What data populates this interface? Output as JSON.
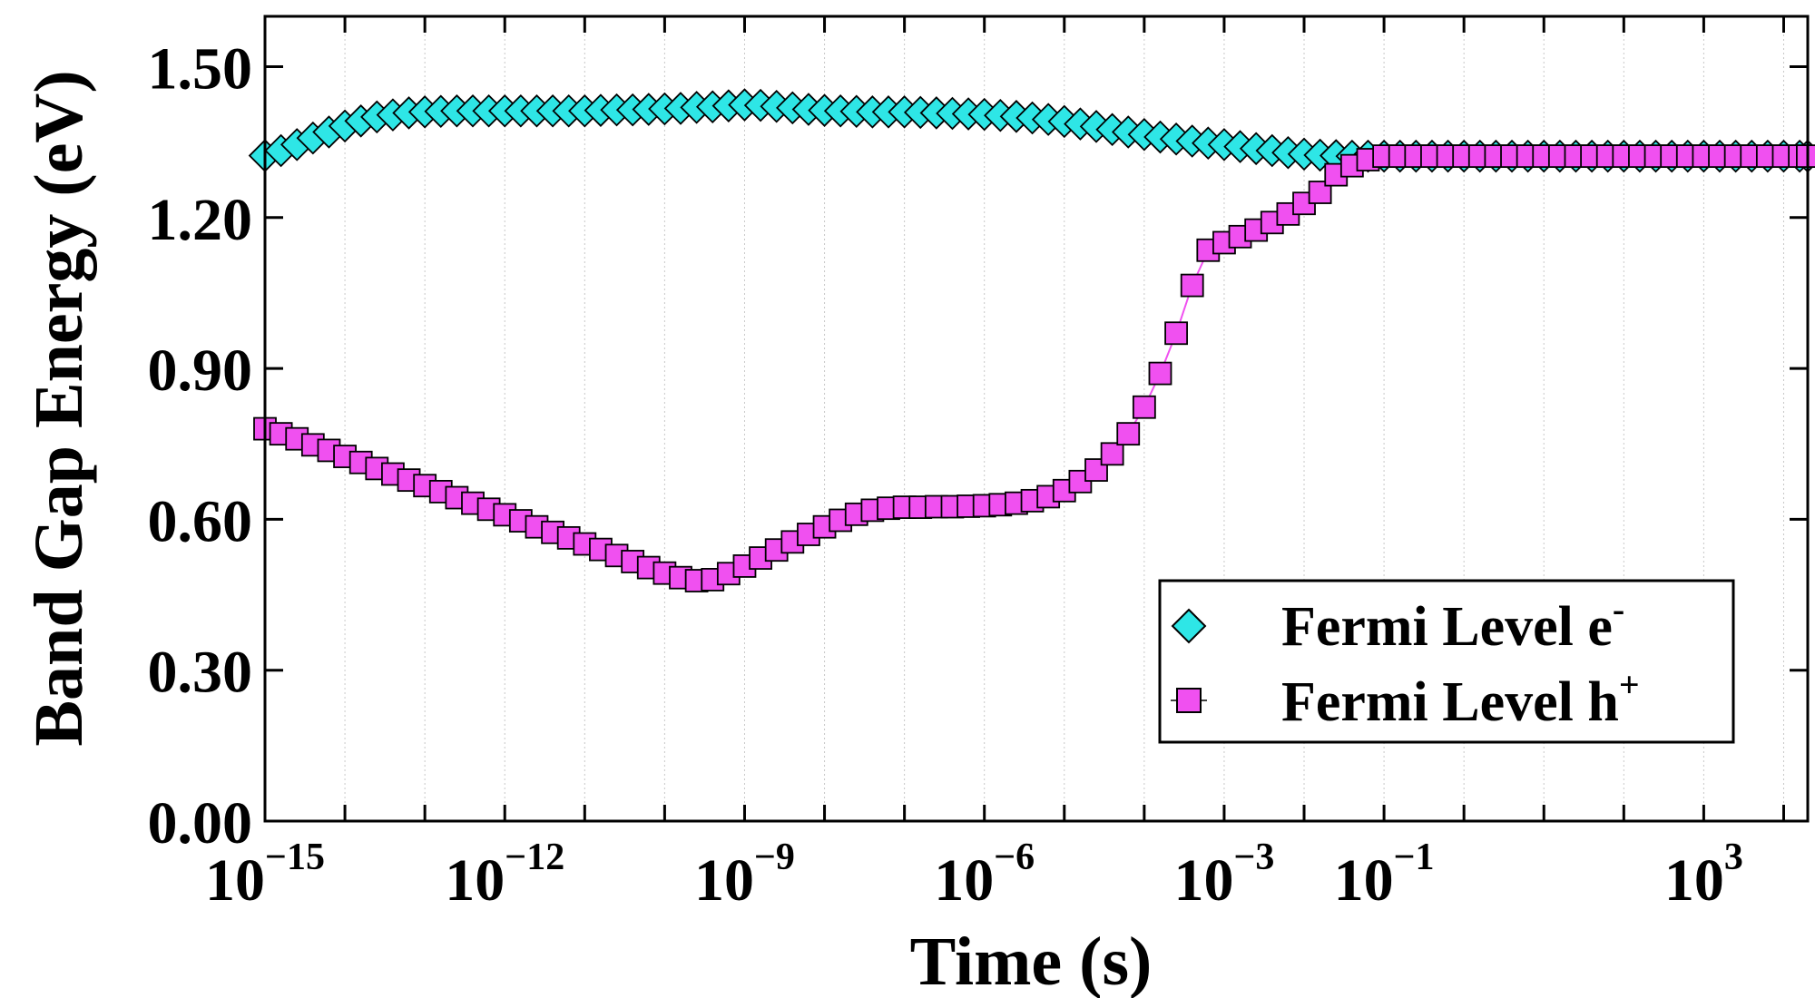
{
  "chart_data": {
    "type": "scatter",
    "xlabel": "Time (s)",
    "ylabel": "Band Gap Energy (eV)",
    "xscale": "log",
    "xlim": [
      1e-15,
      20000
    ],
    "ylim": [
      0.0,
      1.6
    ],
    "grid": {
      "x": true,
      "y": false
    },
    "x_tick_labels": [
      {
        "value": 1e-15,
        "base": "10",
        "exp": "−15"
      },
      {
        "value": 1e-12,
        "base": "10",
        "exp": "−12"
      },
      {
        "value": 1e-09,
        "base": "10",
        "exp": "−9"
      },
      {
        "value": 1e-06,
        "base": "10",
        "exp": "−6"
      },
      {
        "value": 0.001,
        "base": "10",
        "exp": "−3"
      },
      {
        "value": 0.1,
        "base": "10",
        "exp": "−1"
      },
      {
        "value": 1000.0,
        "base": "10",
        "exp": "3"
      }
    ],
    "y_ticks": [
      0.0,
      0.3,
      0.6,
      0.9,
      1.2,
      1.5
    ],
    "y_tick_labels": [
      "0.00",
      "0.30",
      "0.60",
      "0.90",
      "1.20",
      "1.50"
    ],
    "legend_position": "bottom-right",
    "series": [
      {
        "name": "Fermi Level e",
        "superscript": "-",
        "marker": "diamond",
        "color": "#2ee6e6",
        "edge_color": "#000000",
        "line": false,
        "points": [
          [
            -15.0,
            1.323
          ],
          [
            -14.8,
            1.333
          ],
          [
            -14.6,
            1.345
          ],
          [
            -14.4,
            1.358
          ],
          [
            -14.2,
            1.37
          ],
          [
            -14.0,
            1.382
          ],
          [
            -13.8,
            1.392
          ],
          [
            -13.6,
            1.4
          ],
          [
            -13.4,
            1.404
          ],
          [
            -13.2,
            1.408
          ],
          [
            -13.0,
            1.41
          ],
          [
            -12.8,
            1.411
          ],
          [
            -12.6,
            1.412
          ],
          [
            -12.4,
            1.412
          ],
          [
            -12.2,
            1.412
          ],
          [
            -12.0,
            1.412
          ],
          [
            -11.8,
            1.412
          ],
          [
            -11.6,
            1.412
          ],
          [
            -11.4,
            1.412
          ],
          [
            -11.2,
            1.412
          ],
          [
            -11.0,
            1.412
          ],
          [
            -10.8,
            1.413
          ],
          [
            -10.6,
            1.414
          ],
          [
            -10.4,
            1.414
          ],
          [
            -10.2,
            1.415
          ],
          [
            -10.0,
            1.416
          ],
          [
            -9.8,
            1.417
          ],
          [
            -9.6,
            1.419
          ],
          [
            -9.4,
            1.42
          ],
          [
            -9.2,
            1.422
          ],
          [
            -9.0,
            1.424
          ],
          [
            -8.8,
            1.423
          ],
          [
            -8.6,
            1.421
          ],
          [
            -8.4,
            1.418
          ],
          [
            -8.2,
            1.415
          ],
          [
            -8.0,
            1.413
          ],
          [
            -7.8,
            1.412
          ],
          [
            -7.6,
            1.411
          ],
          [
            -7.4,
            1.41
          ],
          [
            -7.2,
            1.41
          ],
          [
            -7.0,
            1.41
          ],
          [
            -6.8,
            1.409
          ],
          [
            -6.6,
            1.408
          ],
          [
            -6.4,
            1.407
          ],
          [
            -6.2,
            1.406
          ],
          [
            -6.0,
            1.405
          ],
          [
            -5.8,
            1.403
          ],
          [
            -5.6,
            1.401
          ],
          [
            -5.4,
            1.398
          ],
          [
            -5.2,
            1.395
          ],
          [
            -5.0,
            1.391
          ],
          [
            -4.8,
            1.386
          ],
          [
            -4.6,
            1.381
          ],
          [
            -4.4,
            1.375
          ],
          [
            -4.2,
            1.37
          ],
          [
            -4.0,
            1.365
          ],
          [
            -3.8,
            1.36
          ],
          [
            -3.6,
            1.356
          ],
          [
            -3.4,
            1.352
          ],
          [
            -3.2,
            1.348
          ],
          [
            -3.0,
            1.345
          ],
          [
            -2.8,
            1.341
          ],
          [
            -2.6,
            1.337
          ],
          [
            -2.4,
            1.333
          ],
          [
            -2.2,
            1.329
          ],
          [
            -2.0,
            1.326
          ],
          [
            -1.8,
            1.324
          ],
          [
            -1.6,
            1.323
          ],
          [
            -1.4,
            1.322
          ],
          [
            -1.2,
            1.322
          ],
          [
            -1.0,
            1.322
          ],
          [
            -0.8,
            1.322
          ],
          [
            -0.6,
            1.322
          ],
          [
            -0.4,
            1.322
          ],
          [
            -0.2,
            1.322
          ],
          [
            0.0,
            1.322
          ],
          [
            0.2,
            1.322
          ],
          [
            0.4,
            1.322
          ],
          [
            0.6,
            1.322
          ],
          [
            0.8,
            1.322
          ],
          [
            1.0,
            1.322
          ],
          [
            1.2,
            1.322
          ],
          [
            1.4,
            1.322
          ],
          [
            1.6,
            1.322
          ],
          [
            1.8,
            1.322
          ],
          [
            2.0,
            1.322
          ],
          [
            2.2,
            1.322
          ],
          [
            2.4,
            1.322
          ],
          [
            2.6,
            1.322
          ],
          [
            2.8,
            1.322
          ],
          [
            3.0,
            1.322
          ],
          [
            3.2,
            1.322
          ],
          [
            3.4,
            1.322
          ],
          [
            3.6,
            1.322
          ],
          [
            3.8,
            1.322
          ],
          [
            4.0,
            1.322
          ],
          [
            4.2,
            1.322
          ],
          [
            4.3,
            1.322
          ]
        ]
      },
      {
        "name": "Fermi Level h",
        "superscript": "+",
        "marker": "square",
        "color": "#f050f0",
        "edge_color": "#000000",
        "line": true,
        "points": [
          [
            -15.0,
            0.78
          ],
          [
            -14.8,
            0.77
          ],
          [
            -14.6,
            0.76
          ],
          [
            -14.4,
            0.748
          ],
          [
            -14.2,
            0.737
          ],
          [
            -14.0,
            0.725
          ],
          [
            -13.8,
            0.713
          ],
          [
            -13.6,
            0.701
          ],
          [
            -13.4,
            0.69
          ],
          [
            -13.2,
            0.678
          ],
          [
            -13.0,
            0.667
          ],
          [
            -12.8,
            0.655
          ],
          [
            -12.6,
            0.643
          ],
          [
            -12.4,
            0.632
          ],
          [
            -12.2,
            0.62
          ],
          [
            -12.0,
            0.609
          ],
          [
            -11.8,
            0.597
          ],
          [
            -11.6,
            0.585
          ],
          [
            -11.4,
            0.574
          ],
          [
            -11.2,
            0.563
          ],
          [
            -11.0,
            0.551
          ],
          [
            -10.8,
            0.54
          ],
          [
            -10.6,
            0.528
          ],
          [
            -10.4,
            0.516
          ],
          [
            -10.2,
            0.504
          ],
          [
            -10.0,
            0.493
          ],
          [
            -9.8,
            0.484
          ],
          [
            -9.6,
            0.478
          ],
          [
            -9.4,
            0.48
          ],
          [
            -9.2,
            0.492
          ],
          [
            -9.0,
            0.507
          ],
          [
            -8.8,
            0.523
          ],
          [
            -8.6,
            0.539
          ],
          [
            -8.4,
            0.555
          ],
          [
            -8.2,
            0.57
          ],
          [
            -8.0,
            0.585
          ],
          [
            -7.8,
            0.598
          ],
          [
            -7.6,
            0.61
          ],
          [
            -7.4,
            0.618
          ],
          [
            -7.2,
            0.622
          ],
          [
            -7.0,
            0.624
          ],
          [
            -6.8,
            0.624
          ],
          [
            -6.6,
            0.625
          ],
          [
            -6.4,
            0.625
          ],
          [
            -6.2,
            0.626
          ],
          [
            -6.0,
            0.627
          ],
          [
            -5.8,
            0.629
          ],
          [
            -5.6,
            0.632
          ],
          [
            -5.4,
            0.637
          ],
          [
            -5.2,
            0.645
          ],
          [
            -5.0,
            0.657
          ],
          [
            -4.8,
            0.675
          ],
          [
            -4.6,
            0.698
          ],
          [
            -4.4,
            0.73
          ],
          [
            -4.2,
            0.77
          ],
          [
            -4.0,
            0.823
          ],
          [
            -3.8,
            0.89
          ],
          [
            -3.6,
            0.97
          ],
          [
            -3.4,
            1.065
          ],
          [
            -3.2,
            1.135
          ],
          [
            -3.0,
            1.15
          ],
          [
            -2.8,
            1.162
          ],
          [
            -2.6,
            1.175
          ],
          [
            -2.4,
            1.19
          ],
          [
            -2.2,
            1.207
          ],
          [
            -2.0,
            1.228
          ],
          [
            -1.8,
            1.25
          ],
          [
            -1.6,
            1.285
          ],
          [
            -1.4,
            1.303
          ],
          [
            -1.2,
            1.315
          ],
          [
            -1.0,
            1.322
          ],
          [
            -0.8,
            1.322
          ],
          [
            -0.6,
            1.322
          ],
          [
            -0.4,
            1.322
          ],
          [
            -0.2,
            1.322
          ],
          [
            0.0,
            1.322
          ],
          [
            0.2,
            1.322
          ],
          [
            0.4,
            1.322
          ],
          [
            0.6,
            1.322
          ],
          [
            0.8,
            1.322
          ],
          [
            1.0,
            1.322
          ],
          [
            1.2,
            1.322
          ],
          [
            1.4,
            1.322
          ],
          [
            1.6,
            1.322
          ],
          [
            1.8,
            1.322
          ],
          [
            2.0,
            1.322
          ],
          [
            2.2,
            1.322
          ],
          [
            2.4,
            1.322
          ],
          [
            2.6,
            1.322
          ],
          [
            2.8,
            1.322
          ],
          [
            3.0,
            1.322
          ],
          [
            3.2,
            1.322
          ],
          [
            3.4,
            1.322
          ],
          [
            3.6,
            1.322
          ],
          [
            3.8,
            1.322
          ],
          [
            4.0,
            1.322
          ],
          [
            4.2,
            1.322
          ],
          [
            4.3,
            1.322
          ]
        ]
      }
    ]
  }
}
